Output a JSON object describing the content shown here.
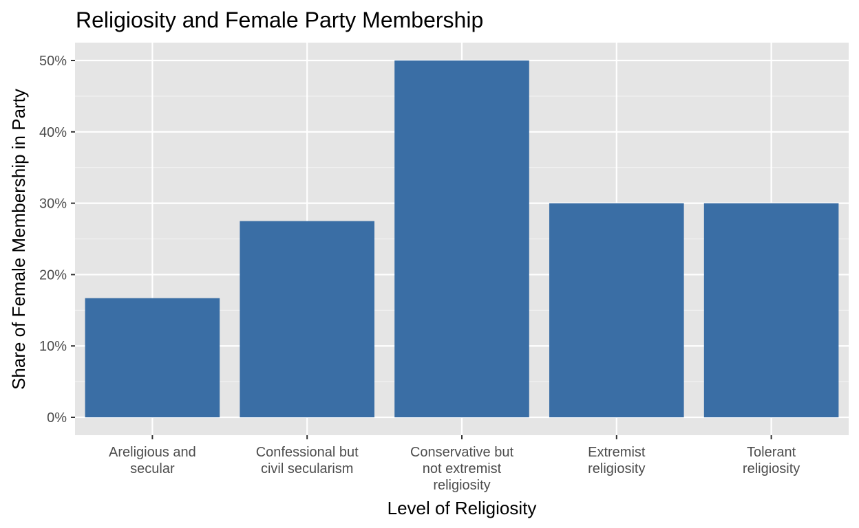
{
  "chart_data": {
    "type": "bar",
    "title": "Religiosity and Female Party Membership",
    "xlabel": "Level of Religiosity",
    "ylabel": "Share of Female Membership in Party",
    "categories": [
      [
        "Areligious and",
        "secular"
      ],
      [
        "Confessional but",
        "civil secularism"
      ],
      [
        "Conservative but",
        "not extremist",
        "religiosity"
      ],
      [
        "Extremist",
        "religiosity"
      ],
      [
        "Tolerant",
        "religiosity"
      ]
    ],
    "values": [
      16.7,
      27.5,
      50.0,
      30.0,
      30.0
    ],
    "ylim": [
      0,
      52.5
    ],
    "yticks": [
      0,
      10,
      20,
      30,
      40,
      50
    ],
    "ytick_labels": [
      "0%",
      "10%",
      "20%",
      "30%",
      "40%",
      "50%"
    ],
    "grid": true,
    "legend": "none",
    "colors": {
      "bar": "#3a6ea5",
      "panel_background": "#e5e5e5",
      "grid_major": "#ffffff",
      "grid_minor": "#f2f2f2",
      "tick_mark": "#333333"
    }
  }
}
